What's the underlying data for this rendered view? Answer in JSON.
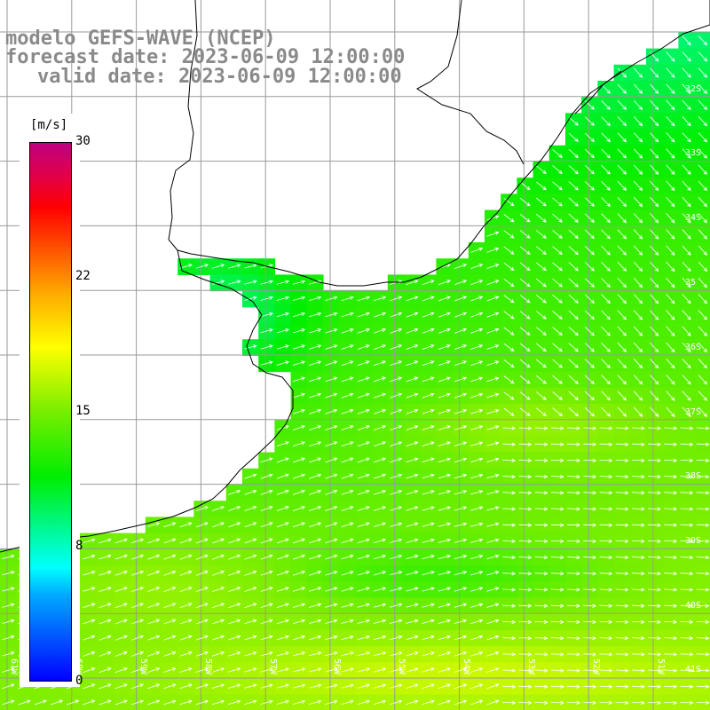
{
  "title": {
    "line1": "modelo GEFS-WAVE (NCEP)",
    "line2": "forecast date: 2023-06-09 12:00:00",
    "line3": "valid date: 2023-06-09 12:00:00"
  },
  "legend": {
    "unit": "[m/s]",
    "ticks": [
      "30",
      "22",
      "15",
      "8",
      "0"
    ],
    "tick_values": [
      30,
      22,
      15,
      8,
      0
    ],
    "range": [
      0,
      30
    ],
    "colors": [
      "#0000ff",
      "#00aaff",
      "#00ffff",
      "#00ee00",
      "#77ee00",
      "#ffff00",
      "#ffaa00",
      "#ff5500",
      "#ff0000",
      "#c00080"
    ]
  },
  "map": {
    "lat_labels": [
      "32S",
      "33S",
      "34S",
      "35",
      "36S",
      "37S",
      "38S",
      "39S",
      "40S",
      "41S"
    ],
    "lon_labels": [
      "61W",
      "60W",
      "59W",
      "58W",
      "57W",
      "56W",
      "55W",
      "54W",
      "53W",
      "52W",
      "51W"
    ],
    "land_color": "#ffffff",
    "grid_color": "#9a9a9a",
    "coast_color": "#000000",
    "arrow_color": "#ffffff"
  }
}
